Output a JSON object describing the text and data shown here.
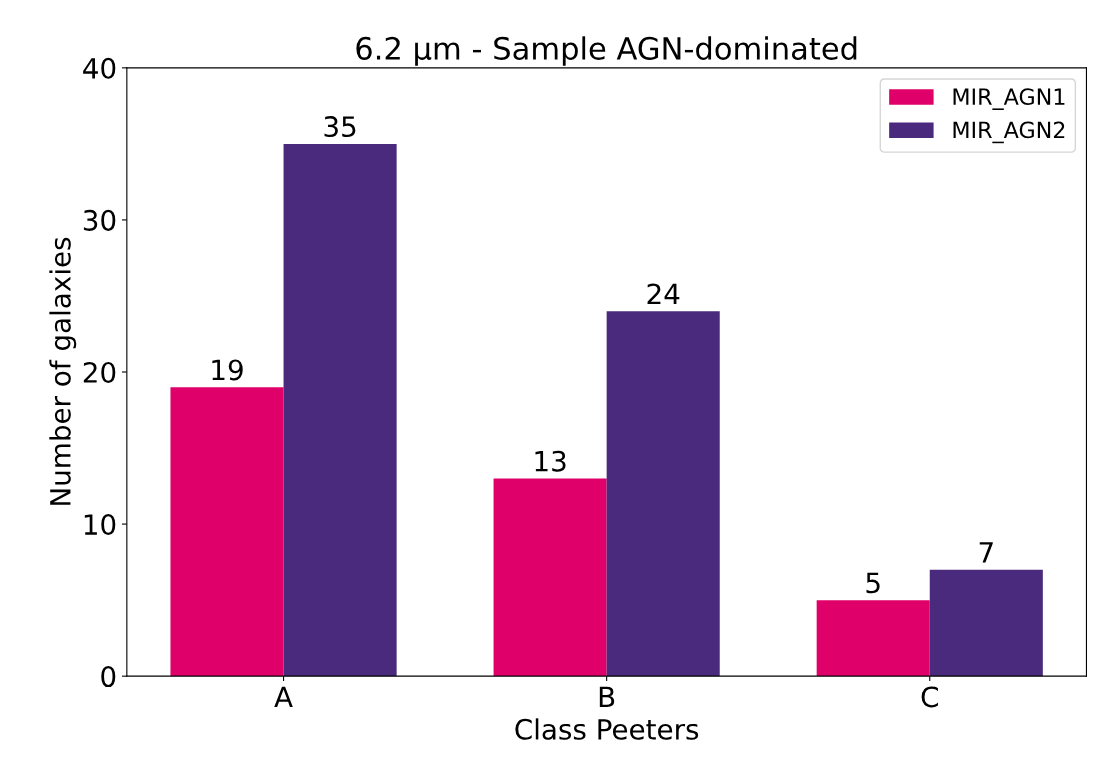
{
  "chart_data": {
    "type": "bar",
    "title": "6.2 μm - Sample AGN-dominated",
    "xlabel": "Class Peeters",
    "ylabel": "Number of galaxies",
    "categories": [
      "A",
      "B",
      "C"
    ],
    "series": [
      {
        "name": "MIR_AGN1",
        "color": "#e0006a",
        "values": [
          19,
          13,
          5
        ]
      },
      {
        "name": "MIR_AGN2",
        "color": "#4a2a7c",
        "values": [
          35,
          24,
          7
        ]
      }
    ],
    "ylim": [
      0,
      40
    ],
    "yticks": [
      0,
      10,
      20,
      30,
      40
    ],
    "data_labels": true,
    "legend": "top right",
    "grid": false
  }
}
